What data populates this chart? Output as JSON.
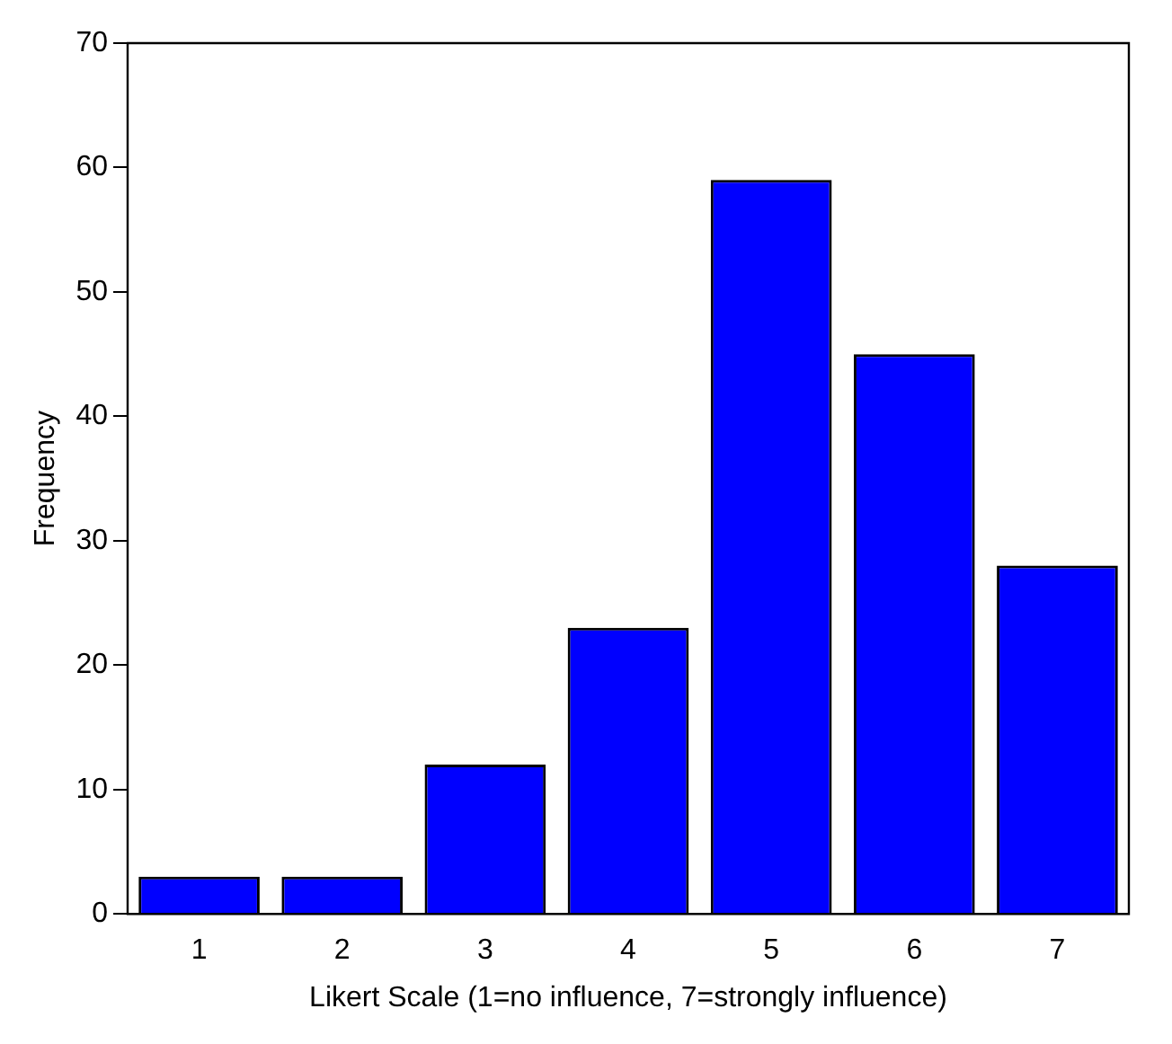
{
  "chart_data": {
    "type": "bar",
    "xlabel": "Likert Scale (1=no influence, 7=strongly influence)",
    "ylabel": "Frequency",
    "categories": [
      "1",
      "2",
      "3",
      "4",
      "5",
      "6",
      "7"
    ],
    "values": [
      3,
      3,
      12,
      23,
      59,
      45,
      28
    ],
    "color": "#0000ff",
    "ylim": [
      0,
      70
    ],
    "yticks": [
      0,
      10,
      20,
      30,
      40,
      50,
      60,
      70
    ],
    "grid": false,
    "legend": false
  }
}
